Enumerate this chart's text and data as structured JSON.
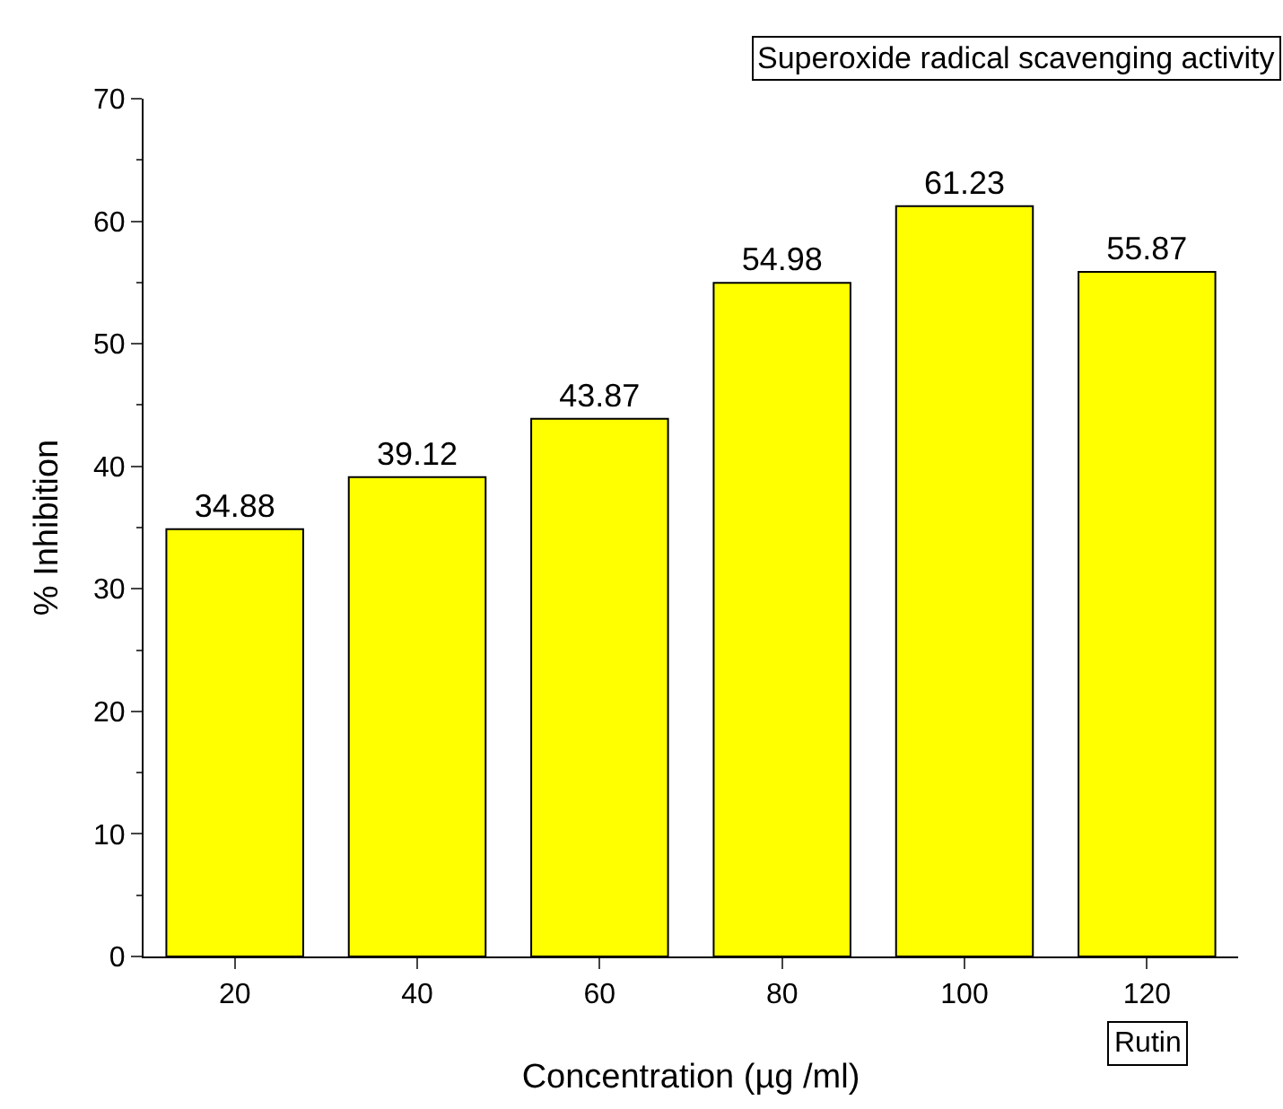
{
  "chart_data": {
    "type": "bar",
    "title": "Superoxide radical scavenging activity",
    "xlabel": "Concentration (µg /ml)",
    "ylabel": "% Inhibition",
    "x": [
      20,
      40,
      60,
      80,
      100,
      120
    ],
    "values": [
      34.88,
      39.12,
      43.87,
      54.98,
      61.23,
      55.87
    ],
    "color": "#ffff00",
    "data_labels": true,
    "xlim": [
      10,
      130
    ],
    "xticks": [
      20,
      40,
      60,
      80,
      100,
      120
    ],
    "ylim": [
      0,
      70
    ],
    "yticks": [
      0,
      10,
      20,
      30,
      40,
      50,
      60,
      70
    ],
    "grid": false,
    "annotations": [
      "Rutin"
    ]
  }
}
